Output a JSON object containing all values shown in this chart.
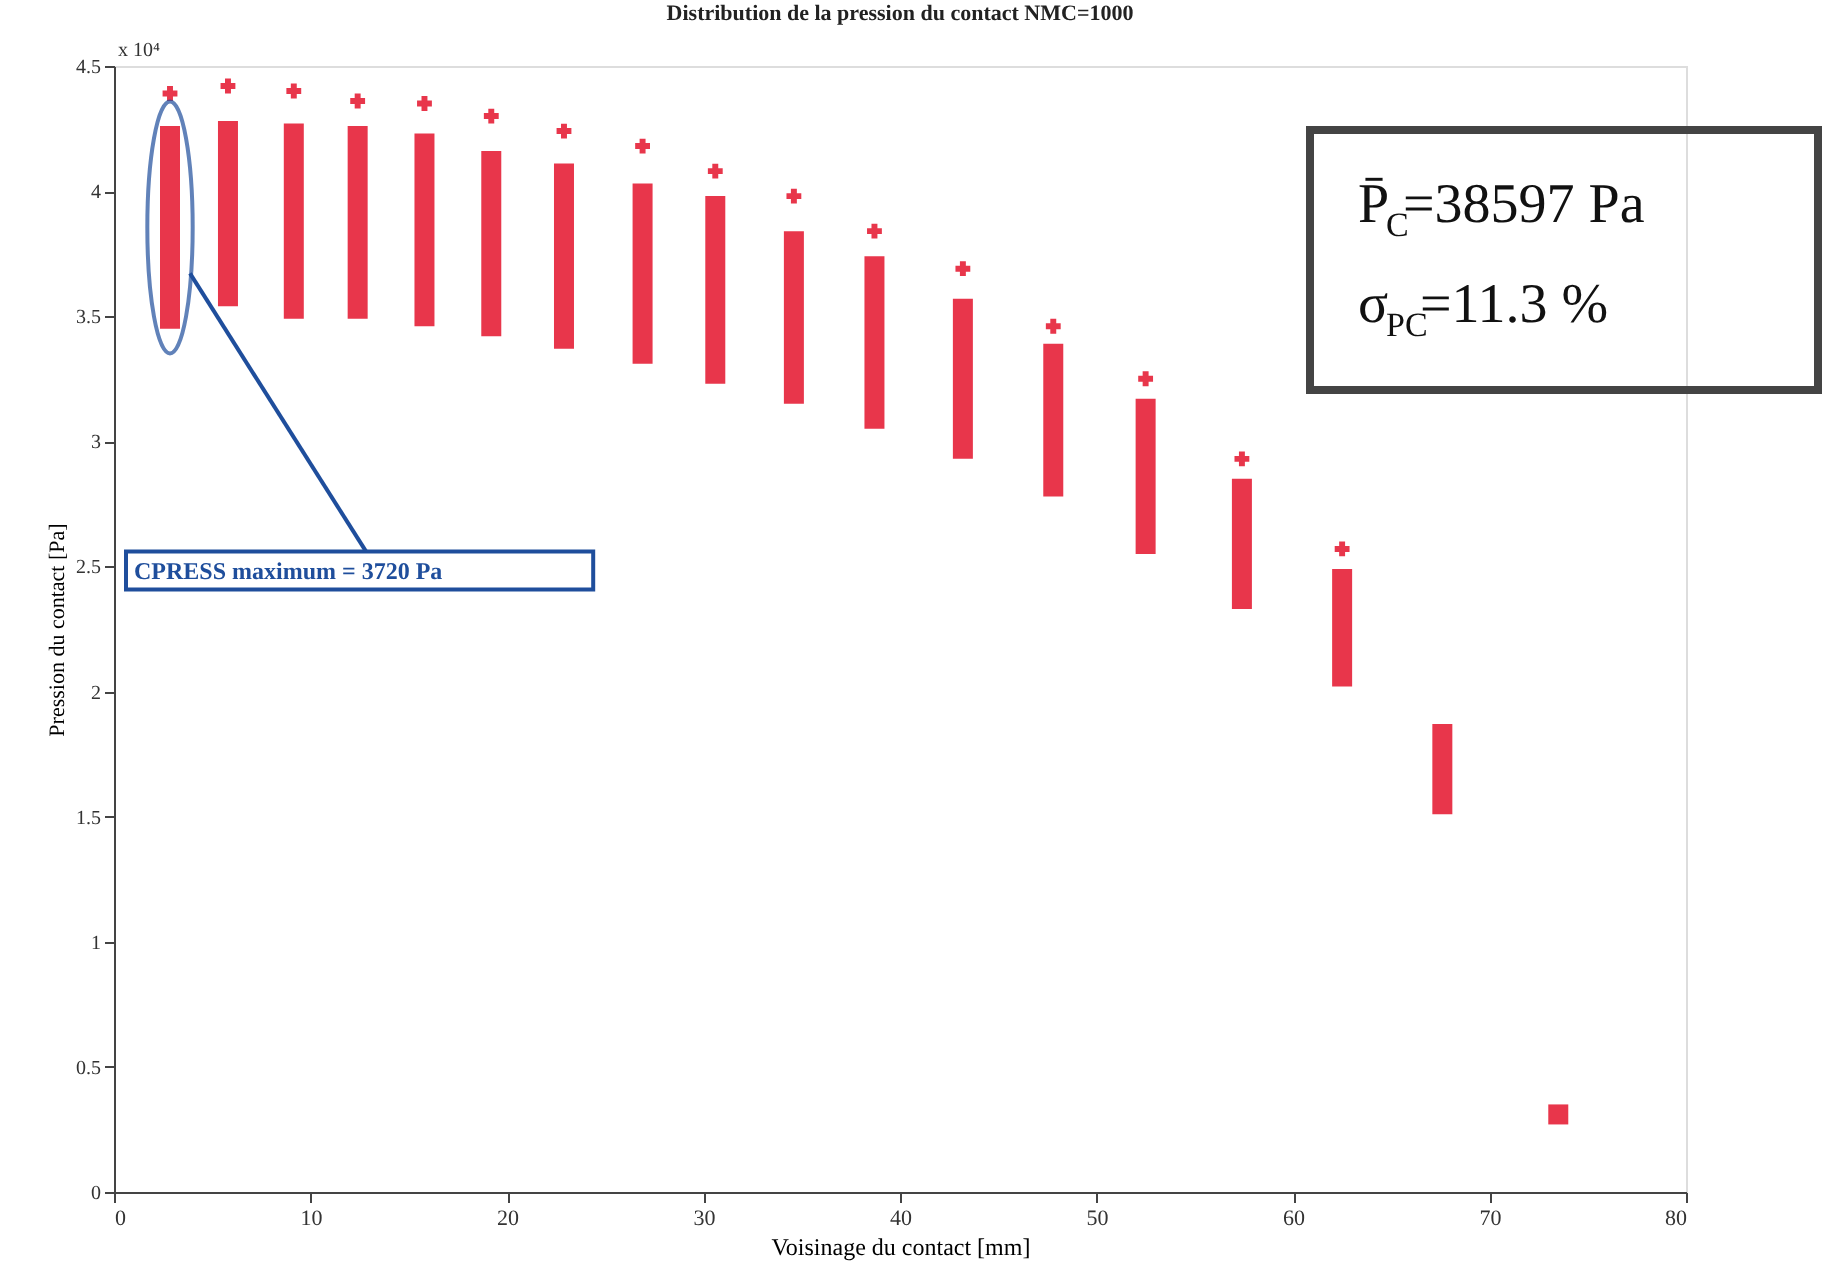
{
  "chart_data": {
    "type": "bar",
    "title": "Distribution de la pression du contact NMC=1000",
    "xlabel": "Voisinage du contact [mm]",
    "ylabel": "Pression du contact [Pa]",
    "x": [
      2.85,
      5.8,
      9.15,
      12.4,
      15.8,
      19.2,
      22.9,
      26.9,
      30.6,
      34.6,
      38.7,
      43.2,
      47.8,
      52.5,
      57.4,
      62.5,
      67.6,
      73.5
    ],
    "series": [
      {
        "color": "#e8364b",
        "base": [
          3.45,
          3.54,
          3.49,
          3.49,
          3.46,
          3.42,
          3.37,
          3.31,
          3.23,
          3.15,
          3.05,
          2.93,
          2.78,
          2.55,
          2.33,
          2.02,
          1.51,
          0.27
        ],
        "values": [
          0.81,
          0.74,
          0.78,
          0.77,
          0.77,
          0.74,
          0.74,
          0.72,
          0.75,
          0.69,
          0.69,
          0.64,
          0.61,
          0.62,
          0.52,
          0.47,
          0.36,
          0.08
        ]
      },
      {
        "type": "scatter",
        "color": "#e8364b",
        "marker": "cross",
        "x": [
          2.85,
          5.8,
          9.15,
          12.4,
          15.8,
          19.2,
          22.9,
          26.9,
          30.6,
          34.6,
          38.7,
          43.2,
          47.8,
          52.5,
          57.4,
          62.5
        ],
        "values": [
          4.39,
          4.42,
          4.4,
          4.36,
          4.35,
          4.3,
          4.24,
          4.18,
          4.08,
          3.98,
          3.84,
          3.69,
          3.46,
          3.25,
          2.93,
          2.57
        ]
      }
    ],
    "xlim": [
      0,
      80
    ],
    "xticks": [
      0,
      10,
      20,
      30,
      40,
      50,
      60,
      70,
      80
    ],
    "ylim": [
      0,
      4.5
    ],
    "yticks": [
      0,
      0.5,
      1,
      1.5,
      2,
      2.5,
      3,
      3.5,
      4,
      4.5
    ],
    "grid": false,
    "annotations": [
      "x 10⁴",
      "CPRESS maximum = 3720 Pa",
      "P̄$_{C}$=38597 Pa",
      "σ$_{PC}$=11.3 %"
    ]
  }
}
